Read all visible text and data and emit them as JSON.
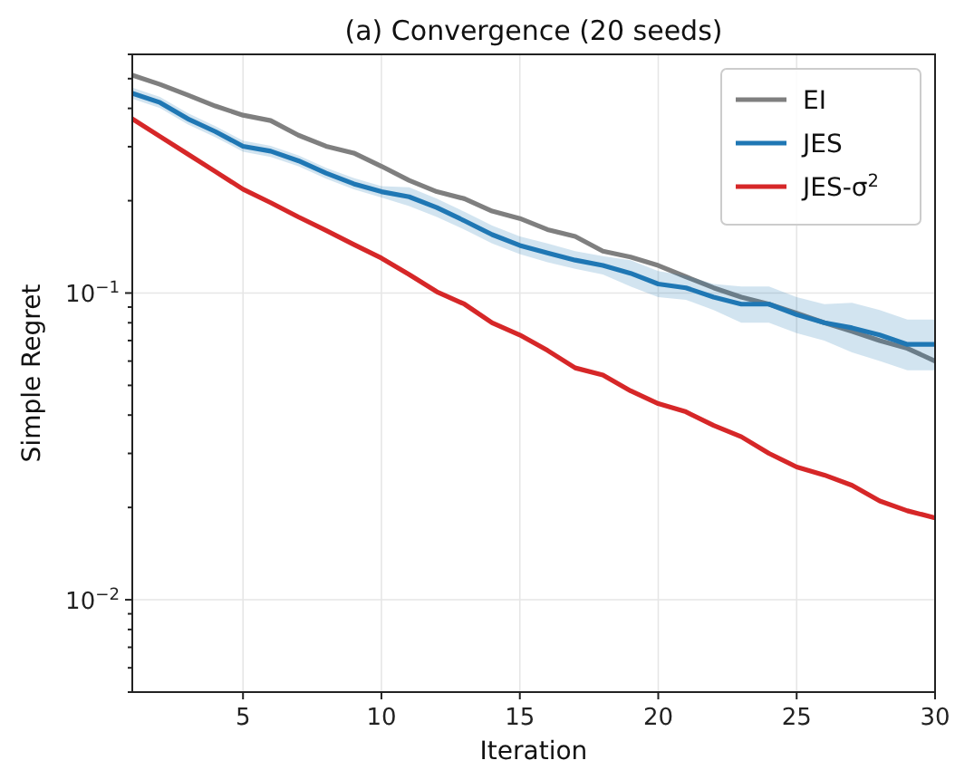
{
  "chart_data": {
    "type": "line",
    "title": "(a) Convergence (20 seeds)",
    "xlabel": "Iteration",
    "ylabel": "Simple Regret",
    "log": "y",
    "grid": true,
    "legend": "top right",
    "line_style": "solid",
    "marker": "none",
    "xlim": [
      1,
      30
    ],
    "xticks": [
      5,
      10,
      15,
      20,
      25,
      30
    ],
    "ylim": [
      0.005,
      0.6
    ],
    "yticks": [
      {
        "value": 0.005,
        "label": null
      },
      {
        "value": 0.006,
        "label": null
      },
      {
        "value": 0.007,
        "label": null
      },
      {
        "value": 0.008,
        "label": null
      },
      {
        "value": 0.009,
        "label": null
      },
      {
        "value": 0.01,
        "label": "10$^{−2}$"
      },
      {
        "value": 0.02,
        "label": null
      },
      {
        "value": 0.03,
        "label": null
      },
      {
        "value": 0.04,
        "label": null
      },
      {
        "value": 0.05,
        "label": null
      },
      {
        "value": 0.06,
        "label": null
      },
      {
        "value": 0.07,
        "label": null
      },
      {
        "value": 0.08,
        "label": null
      },
      {
        "value": 0.09,
        "label": null
      },
      {
        "value": 0.1,
        "label": "10$^{−1}$"
      },
      {
        "value": 0.2,
        "label": null
      },
      {
        "value": 0.3,
        "label": null
      },
      {
        "value": 0.4,
        "label": null
      },
      {
        "value": 0.5,
        "label": null
      },
      {
        "value": 0.6,
        "label": null
      }
    ],
    "x": [
      1,
      2,
      3,
      4,
      5,
      6,
      7,
      8,
      9,
      10,
      11,
      12,
      13,
      14,
      15,
      16,
      17,
      18,
      19,
      20,
      21,
      22,
      23,
      24,
      25,
      26,
      27,
      28,
      29,
      30
    ],
    "series": [
      {
        "name": "EI",
        "color": "#7f7f7f",
        "values": [
          0.513,
          0.479,
          0.442,
          0.407,
          0.38,
          0.365,
          0.327,
          0.301,
          0.286,
          0.259,
          0.233,
          0.214,
          0.203,
          0.185,
          0.175,
          0.161,
          0.153,
          0.137,
          0.131,
          0.123,
          0.113,
          0.104,
          0.097,
          0.092,
          0.086,
          0.08,
          0.075,
          0.07,
          0.066,
          0.06
        ]
      },
      {
        "name": "JES",
        "color": "#1f77b4",
        "values": [
          0.448,
          0.418,
          0.37,
          0.336,
          0.301,
          0.29,
          0.27,
          0.246,
          0.227,
          0.214,
          0.206,
          0.19,
          0.172,
          0.155,
          0.143,
          0.135,
          0.128,
          0.123,
          0.116,
          0.107,
          0.104,
          0.097,
          0.092,
          0.092,
          0.085,
          0.08,
          0.077,
          0.073,
          0.068,
          0.068
        ],
        "upper": [
          0.467,
          0.436,
          0.386,
          0.35,
          0.314,
          0.302,
          0.281,
          0.256,
          0.237,
          0.223,
          0.221,
          0.203,
          0.184,
          0.166,
          0.153,
          0.145,
          0.137,
          0.132,
          0.128,
          0.118,
          0.114,
          0.107,
          0.105,
          0.105,
          0.097,
          0.092,
          0.093,
          0.088,
          0.082,
          0.082
        ],
        "lower": [
          0.43,
          0.401,
          0.355,
          0.322,
          0.289,
          0.278,
          0.259,
          0.236,
          0.218,
          0.205,
          0.192,
          0.177,
          0.161,
          0.145,
          0.134,
          0.126,
          0.12,
          0.115,
          0.105,
          0.097,
          0.095,
          0.088,
          0.08,
          0.08,
          0.074,
          0.07,
          0.064,
          0.06,
          0.056,
          0.056
        ]
      },
      {
        "name": "JES-σ$^{2}$",
        "color": "#d62728",
        "values": [
          0.37,
          0.324,
          0.284,
          0.249,
          0.218,
          0.197,
          0.177,
          0.16,
          0.144,
          0.13,
          0.115,
          0.101,
          0.092,
          0.08,
          0.073,
          0.065,
          0.057,
          0.054,
          0.048,
          0.0436,
          0.041,
          0.037,
          0.034,
          0.03,
          0.0271,
          0.0255,
          0.0236,
          0.021,
          0.0195,
          0.0185
        ]
      }
    ]
  }
}
